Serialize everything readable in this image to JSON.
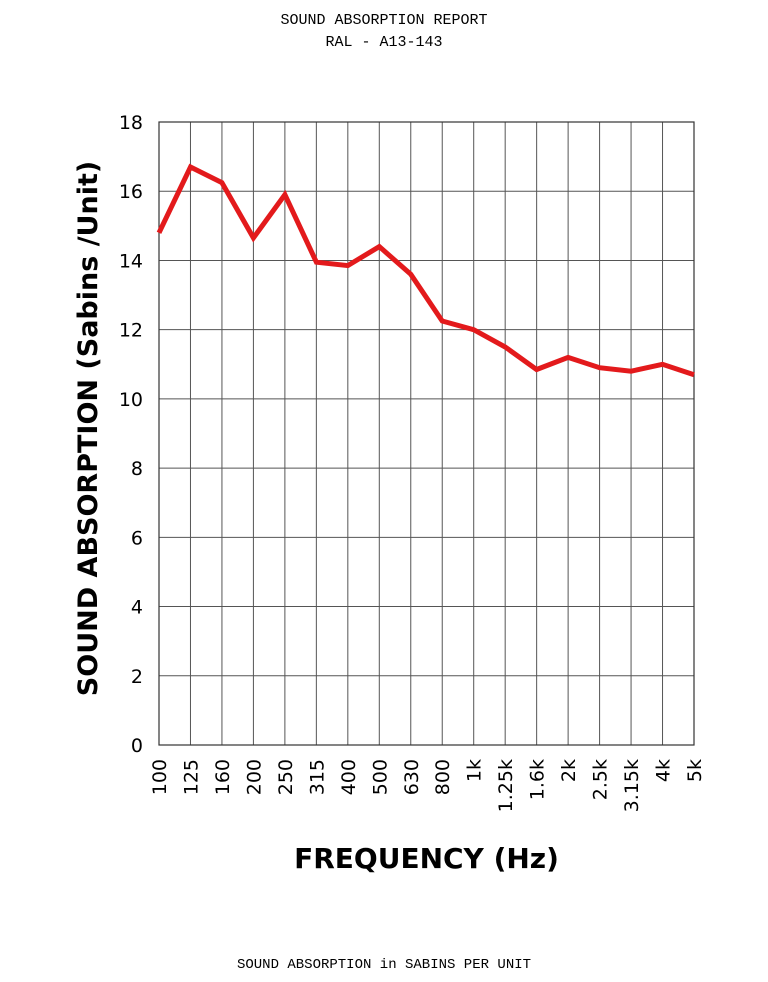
{
  "header": {
    "title": "SOUND ABSORPTION REPORT",
    "subtitle": "RAL - A13-143"
  },
  "footer": {
    "caption": "SOUND ABSORPTION in SABINS PER UNIT"
  },
  "chart_data": {
    "type": "line",
    "title": "SOUND ABSORPTION REPORT",
    "subtitle": "RAL - A13-143",
    "xlabel": "FREQUENCY (Hz)",
    "ylabel": "SOUND ABSORPTION (Sabins /Unit)",
    "categories": [
      "100",
      "125",
      "160",
      "200",
      "250",
      "315",
      "400",
      "500",
      "630",
      "800",
      "1k",
      "1.25k",
      "1.6k",
      "2k",
      "2.5k",
      "3.15k",
      "4k",
      "5k"
    ],
    "series": [
      {
        "values": [
          14.8,
          16.7,
          16.25,
          14.65,
          15.9,
          13.95,
          13.85,
          14.4,
          13.6,
          12.25,
          12.0,
          11.5,
          10.85,
          11.2,
          10.9,
          10.8,
          11.0,
          10.7
        ],
        "color": "#e31a1c"
      }
    ],
    "ylim": [
      0,
      18
    ],
    "yticks": [
      0,
      2,
      4,
      6,
      8,
      10,
      12,
      14,
      16,
      18
    ],
    "grid": true,
    "legend": "none"
  }
}
